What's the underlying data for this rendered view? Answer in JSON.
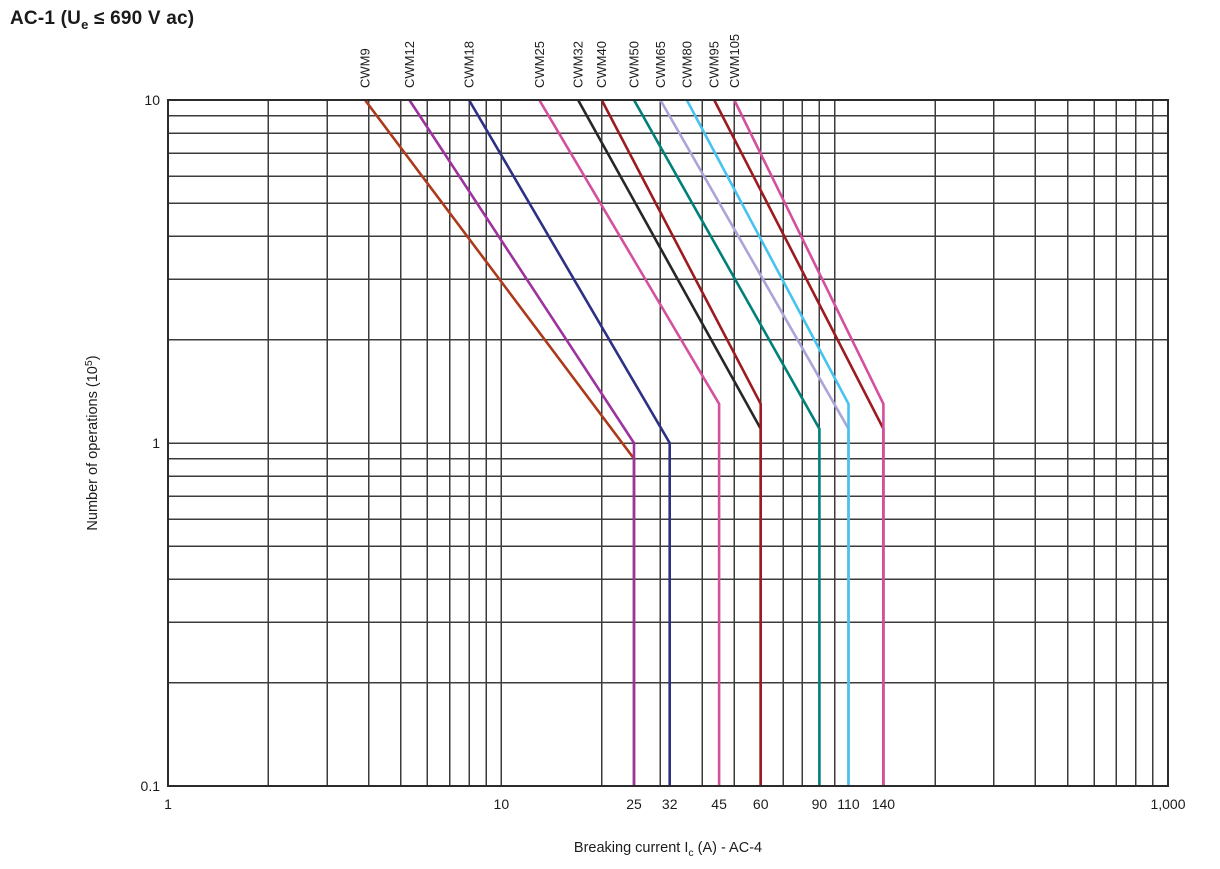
{
  "page": {
    "title": {
      "prefix": "AC-1 (U",
      "sub": "e",
      "suffix": " ≤ 690 V ac)",
      "full": "AC-1 (Ue ≤ 690 V ac)"
    }
  },
  "axis": {
    "x_title": {
      "prefix": "Breaking current I",
      "sub": "c",
      "suffix": " (A) - AC-4",
      "full": "Breaking current Ic (A) - AC-4"
    },
    "y_title": {
      "prefix": "Number of operations (10",
      "sup": "5",
      "suffix": ")",
      "full": "Number of operations (10⁵)"
    }
  },
  "colors": {
    "background": "#ffffff",
    "grid": "#3c3c3c",
    "frame": "#2b2b2b",
    "text": "#1c1c1c"
  },
  "chart_data": {
    "type": "line",
    "title": "AC-1 (Ue ≤ 690 V ac)",
    "xlabel": "Breaking current Ic (A) - AC-4",
    "ylabel": "Number of operations (10⁵)",
    "x_scale": "log",
    "y_scale": "log",
    "xlim": [
      1,
      1000
    ],
    "ylim": [
      0.1,
      10
    ],
    "grid": "full logarithmic minor grid, both axes, black lines on white",
    "legend_position": "rotated labels above each curve start at top of plot",
    "x_major_tick_labels": [
      {
        "value": 1,
        "label": "1"
      },
      {
        "value": 10,
        "label": "10"
      },
      {
        "value": 1000,
        "label": "1,000"
      }
    ],
    "x_breaking_current_tick_labels": [
      {
        "value": 25,
        "label": "25"
      },
      {
        "value": 32,
        "label": "32"
      },
      {
        "value": 45,
        "label": "45"
      },
      {
        "value": 60,
        "label": "60"
      },
      {
        "value": 90,
        "label": "90"
      },
      {
        "value": 110,
        "label": "110"
      },
      {
        "value": 140,
        "label": "140"
      }
    ],
    "y_tick_labels": [
      {
        "value": 10,
        "label": "10"
      },
      {
        "value": 1,
        "label": "1"
      },
      {
        "value": 0.1,
        "label": "0.1"
      }
    ],
    "series": [
      {
        "name": "CWM9",
        "color": "#ac3b1d",
        "max_breaking_current_A": 25,
        "points": [
          [
            3.9,
            10
          ],
          [
            25,
            0.9
          ],
          [
            25,
            0.1
          ]
        ]
      },
      {
        "name": "CWM12",
        "color": "#9c339f",
        "max_breaking_current_A": 25,
        "points": [
          [
            5.3,
            10
          ],
          [
            25,
            1.0
          ],
          [
            25,
            0.1
          ]
        ]
      },
      {
        "name": "CWM18",
        "color": "#2d3085",
        "max_breaking_current_A": 32,
        "points": [
          [
            8,
            10
          ],
          [
            32,
            1.0
          ],
          [
            32,
            0.1
          ]
        ]
      },
      {
        "name": "CWM25",
        "color": "#d4509e",
        "max_breaking_current_A": 45,
        "points": [
          [
            13,
            10
          ],
          [
            45,
            1.3
          ],
          [
            45,
            0.1
          ]
        ]
      },
      {
        "name": "CWM32",
        "color": "#272727",
        "max_breaking_current_A": 60,
        "points": [
          [
            17,
            10
          ],
          [
            60,
            1.1
          ],
          [
            60,
            0.1
          ]
        ]
      },
      {
        "name": "CWM40",
        "color": "#9c1b20",
        "max_breaking_current_A": 60,
        "points": [
          [
            20,
            10
          ],
          [
            60,
            1.3
          ],
          [
            60,
            0.1
          ]
        ]
      },
      {
        "name": "CWM50",
        "color": "#008079",
        "max_breaking_current_A": 90,
        "points": [
          [
            25,
            10
          ],
          [
            90,
            1.1
          ],
          [
            90,
            0.1
          ]
        ]
      },
      {
        "name": "CWM65",
        "color": "#a9a5d9",
        "max_breaking_current_A": 110,
        "points": [
          [
            30,
            10
          ],
          [
            110,
            1.1
          ],
          [
            110,
            0.1
          ]
        ]
      },
      {
        "name": "CWM80",
        "color": "#46c3f0",
        "max_breaking_current_A": 110,
        "points": [
          [
            36,
            10
          ],
          [
            110,
            1.3
          ],
          [
            110,
            0.1
          ]
        ]
      },
      {
        "name": "CWM95",
        "color": "#9c1b20",
        "max_breaking_current_A": 140,
        "points": [
          [
            43.5,
            10
          ],
          [
            140,
            1.1
          ],
          [
            140,
            0.1
          ]
        ]
      },
      {
        "name": "CWM105",
        "color": "#d4509e",
        "max_breaking_current_A": 140,
        "points": [
          [
            50,
            10
          ],
          [
            140,
            1.3
          ],
          [
            140,
            0.1
          ]
        ]
      }
    ]
  }
}
